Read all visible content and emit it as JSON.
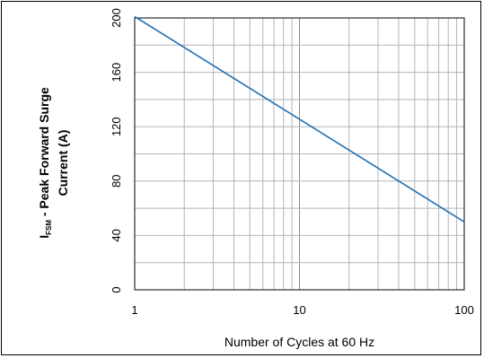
{
  "chart_data": {
    "type": "line",
    "xscale": "log",
    "xlim": [
      1,
      100
    ],
    "ylim": [
      0,
      200
    ],
    "grid": true,
    "x_ticks": [
      "1",
      "10",
      "100"
    ],
    "y_ticks": [
      "0",
      "40",
      "80",
      "120",
      "160",
      "200"
    ],
    "xlabel": "Number of Cycles at 60 Hz",
    "ylabel": {
      "prefix": "I",
      "subscript": "FSM",
      "line1": " - Peak Forward Surge",
      "line2": "Current (A)"
    },
    "series": [
      {
        "x": [
          1,
          100
        ],
        "y": [
          201,
          50
        ],
        "color": "#1f6fb4"
      }
    ]
  }
}
